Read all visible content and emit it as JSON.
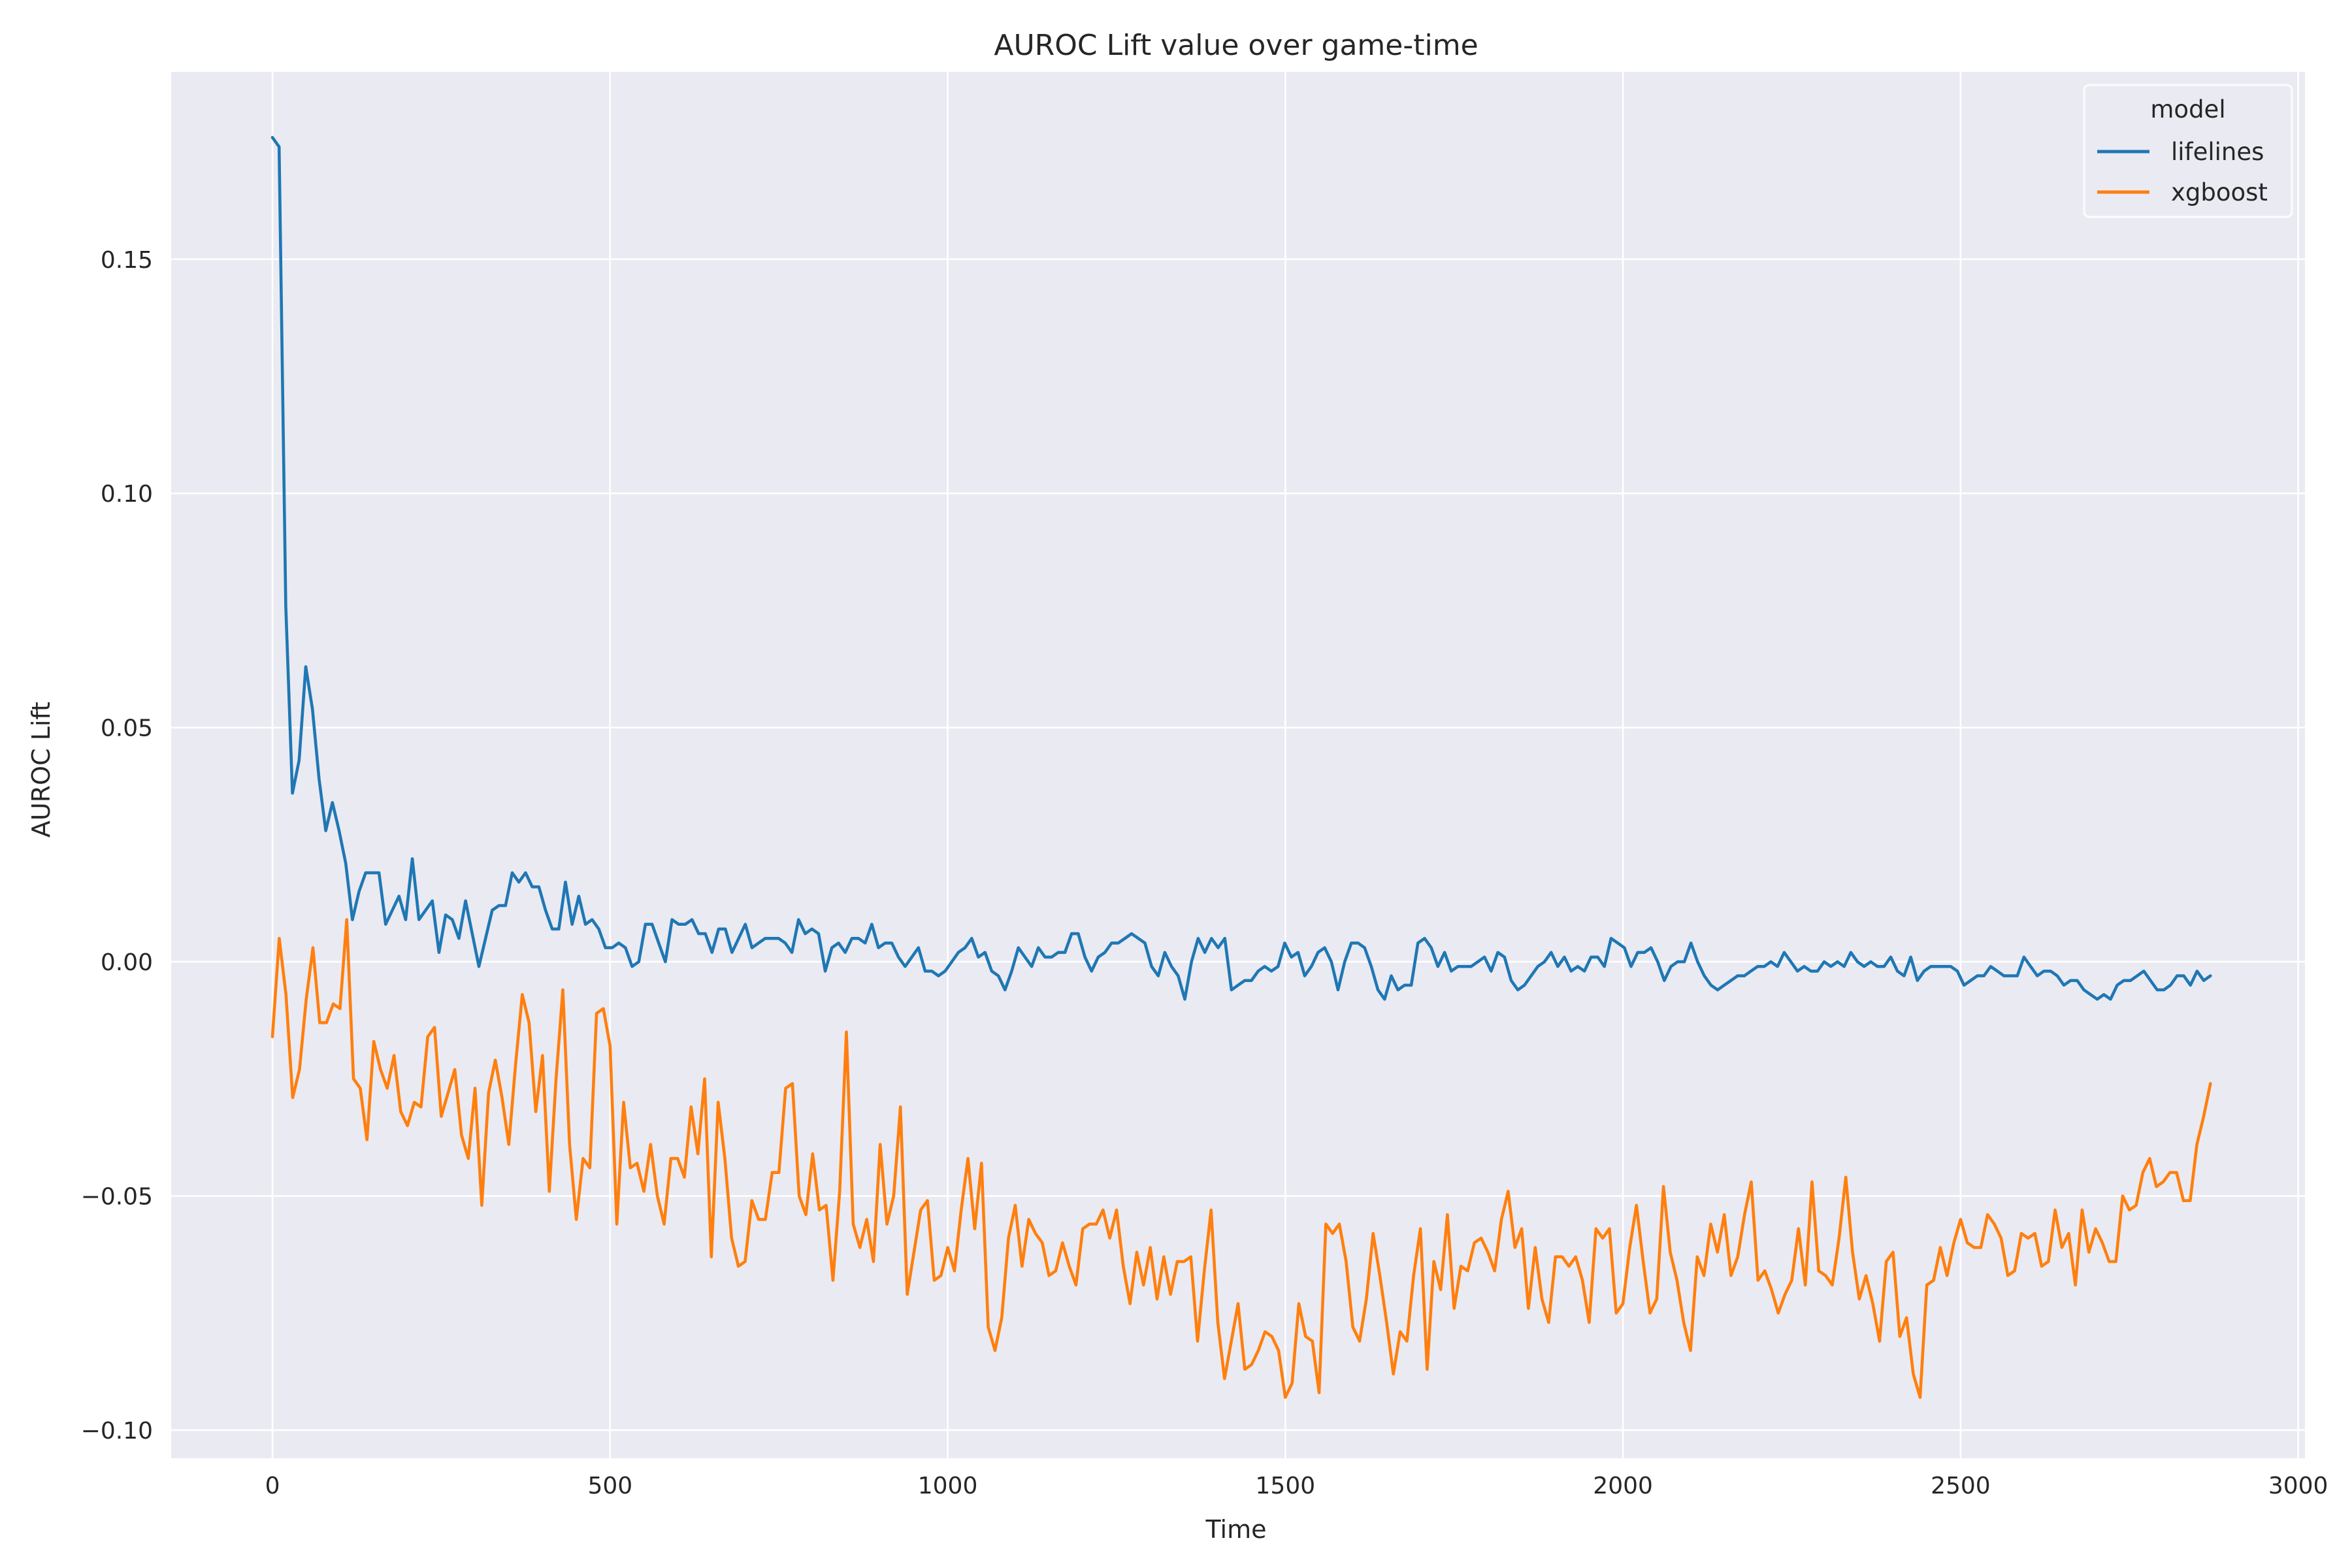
{
  "chart_data": {
    "type": "line",
    "title": "AUROC Lift value over game-time",
    "xlabel": "Time",
    "ylabel": "AUROC Lift",
    "xlim": [
      -150,
      3010
    ],
    "ylim": [
      -0.106,
      0.19
    ],
    "xticks": [
      0,
      500,
      1000,
      1500,
      2000,
      2500,
      3000
    ],
    "yticks": [
      -0.1,
      -0.05,
      0.0,
      0.05,
      0.1,
      0.15
    ],
    "xtick_labels": [
      "0",
      "500",
      "1000",
      "1500",
      "2000",
      "2500",
      "3000"
    ],
    "ytick_labels": [
      "−0.10",
      "−0.05",
      "0.00",
      "0.05",
      "0.10",
      "0.15"
    ],
    "grid": true,
    "legend_title": "model",
    "legend_position": "top-right",
    "x_start": 0,
    "x_step": 10,
    "series": [
      {
        "name": "lifelines",
        "color": "#1f77b4",
        "values": [
          0.176,
          0.174,
          0.076,
          0.036,
          0.043,
          0.063,
          0.054,
          0.039,
          0.028,
          0.034,
          0.028,
          0.021,
          0.009,
          0.015,
          0.019,
          0.019,
          0.019,
          0.008,
          0.011,
          0.014,
          0.009,
          0.022,
          0.009,
          0.011,
          0.013,
          0.002,
          0.01,
          0.009,
          0.005,
          0.013,
          0.006,
          -0.001,
          0.005,
          0.011,
          0.012,
          0.012,
          0.019,
          0.017,
          0.019,
          0.016,
          0.016,
          0.011,
          0.007,
          0.007,
          0.017,
          0.008,
          0.014,
          0.008,
          0.009,
          0.007,
          0.003,
          0.003,
          0.004,
          0.003,
          -0.001,
          0.0,
          0.008,
          0.008,
          0.004,
          0.0,
          0.009,
          0.008,
          0.008,
          0.009,
          0.006,
          0.006,
          0.002,
          0.007,
          0.007,
          0.002,
          0.005,
          0.008,
          0.003,
          0.004,
          0.005,
          0.005,
          0.005,
          0.004,
          0.002,
          0.009,
          0.006,
          0.007,
          0.006,
          -0.002,
          0.003,
          0.004,
          0.002,
          0.005,
          0.005,
          0.004,
          0.008,
          0.003,
          0.004,
          0.004,
          0.001,
          -0.001,
          0.001,
          0.003,
          -0.002,
          -0.002,
          -0.003,
          -0.002,
          0.0,
          0.002,
          0.003,
          0.005,
          0.001,
          0.002,
          -0.002,
          -0.003,
          -0.006,
          -0.002,
          0.003,
          0.001,
          -0.001,
          0.003,
          0.001,
          0.001,
          0.002,
          0.002,
          0.006,
          0.006,
          0.001,
          -0.002,
          0.001,
          0.002,
          0.004,
          0.004,
          0.005,
          0.006,
          0.005,
          0.004,
          -0.001,
          -0.003,
          0.002,
          -0.001,
          -0.003,
          -0.008,
          0.0,
          0.005,
          0.002,
          0.005,
          0.003,
          0.005,
          -0.006,
          -0.005,
          -0.004,
          -0.004,
          -0.002,
          -0.001,
          -0.002,
          -0.001,
          0.004,
          0.001,
          0.002,
          -0.003,
          -0.001,
          0.002,
          0.003,
          0.0,
          -0.006,
          0.0,
          0.004,
          0.004,
          0.003,
          -0.001,
          -0.006,
          -0.008,
          -0.003,
          -0.006,
          -0.005,
          -0.005,
          0.004,
          0.005,
          0.003,
          -0.001,
          0.002,
          -0.002,
          -0.001,
          -0.001,
          -0.001,
          0.0,
          0.001,
          -0.002,
          0.002,
          0.001,
          -0.004,
          -0.006,
          -0.005,
          -0.003,
          -0.001,
          0.0,
          0.002,
          -0.001,
          0.001,
          -0.002,
          -0.001,
          -0.002,
          0.001,
          0.001,
          -0.001,
          0.005,
          0.004,
          0.003,
          -0.001,
          0.002,
          0.002,
          0.003,
          0.0,
          -0.004,
          -0.001,
          0.0,
          0.0,
          0.004,
          0.0,
          -0.003,
          -0.005,
          -0.006,
          -0.005,
          -0.004,
          -0.003,
          -0.003,
          -0.002,
          -0.001,
          -0.001,
          0.0,
          -0.001,
          0.002,
          0.0,
          -0.002,
          -0.001,
          -0.002,
          -0.002,
          0.0,
          -0.001,
          0.0,
          -0.001,
          0.002,
          0.0,
          -0.001,
          0.0,
          -0.001,
          -0.001,
          0.001,
          -0.002,
          -0.003,
          0.001,
          -0.004,
          -0.002,
          -0.001,
          -0.001,
          -0.001,
          -0.001,
          -0.002,
          -0.005,
          -0.004,
          -0.003,
          -0.003,
          -0.001,
          -0.002,
          -0.003,
          -0.003,
          -0.003,
          0.001,
          -0.001,
          -0.003,
          -0.002,
          -0.002,
          -0.003,
          -0.005,
          -0.004,
          -0.004,
          -0.006,
          -0.007,
          -0.008,
          -0.007,
          -0.008,
          -0.005,
          -0.004,
          -0.004,
          -0.003,
          -0.002,
          -0.004,
          -0.006,
          -0.006,
          -0.005,
          -0.003,
          -0.003,
          -0.005,
          -0.002,
          -0.004,
          -0.003
        ],
        "x_end": 2870
      },
      {
        "name": "xgboost",
        "color": "#ff7f0e",
        "values": [
          -0.016,
          0.005,
          -0.007,
          -0.029,
          -0.023,
          -0.008,
          0.003,
          -0.013,
          -0.013,
          -0.009,
          -0.01,
          0.009,
          -0.025,
          -0.027,
          -0.038,
          -0.017,
          -0.023,
          -0.027,
          -0.02,
          -0.032,
          -0.035,
          -0.03,
          -0.031,
          -0.016,
          -0.014,
          -0.033,
          -0.028,
          -0.023,
          -0.037,
          -0.042,
          -0.027,
          -0.052,
          -0.028,
          -0.021,
          -0.029,
          -0.039,
          -0.022,
          -0.007,
          -0.013,
          -0.032,
          -0.02,
          -0.049,
          -0.025,
          -0.006,
          -0.039,
          -0.055,
          -0.042,
          -0.044,
          -0.011,
          -0.01,
          -0.018,
          -0.056,
          -0.03,
          -0.044,
          -0.043,
          -0.049,
          -0.039,
          -0.05,
          -0.056,
          -0.042,
          -0.042,
          -0.046,
          -0.031,
          -0.041,
          -0.025,
          -0.063,
          -0.03,
          -0.042,
          -0.059,
          -0.065,
          -0.064,
          -0.051,
          -0.055,
          -0.055,
          -0.045,
          -0.045,
          -0.027,
          -0.026,
          -0.05,
          -0.054,
          -0.041,
          -0.053,
          -0.052,
          -0.068,
          -0.049,
          -0.015,
          -0.056,
          -0.061,
          -0.055,
          -0.064,
          -0.039,
          -0.056,
          -0.05,
          -0.031,
          -0.071,
          -0.062,
          -0.053,
          -0.051,
          -0.068,
          -0.067,
          -0.061,
          -0.066,
          -0.053,
          -0.042,
          -0.057,
          -0.043,
          -0.078,
          -0.083,
          -0.076,
          -0.059,
          -0.052,
          -0.065,
          -0.055,
          -0.058,
          -0.06,
          -0.067,
          -0.066,
          -0.06,
          -0.065,
          -0.069,
          -0.057,
          -0.056,
          -0.056,
          -0.053,
          -0.059,
          -0.053,
          -0.065,
          -0.073,
          -0.062,
          -0.069,
          -0.061,
          -0.072,
          -0.063,
          -0.071,
          -0.064,
          -0.064,
          -0.063,
          -0.081,
          -0.066,
          -0.053,
          -0.077,
          -0.089,
          -0.081,
          -0.073,
          -0.087,
          -0.086,
          -0.083,
          -0.079,
          -0.08,
          -0.083,
          -0.093,
          -0.09,
          -0.073,
          -0.08,
          -0.081,
          -0.092,
          -0.056,
          -0.058,
          -0.056,
          -0.064,
          -0.078,
          -0.081,
          -0.072,
          -0.058,
          -0.067,
          -0.077,
          -0.088,
          -0.079,
          -0.081,
          -0.067,
          -0.057,
          -0.087,
          -0.064,
          -0.07,
          -0.054,
          -0.074,
          -0.065,
          -0.066,
          -0.06,
          -0.059,
          -0.062,
          -0.066,
          -0.055,
          -0.049,
          -0.061,
          -0.057,
          -0.074,
          -0.061,
          -0.072,
          -0.077,
          -0.063,
          -0.063,
          -0.065,
          -0.063,
          -0.068,
          -0.077,
          -0.057,
          -0.059,
          -0.057,
          -0.075,
          -0.073,
          -0.061,
          -0.052,
          -0.064,
          -0.075,
          -0.072,
          -0.048,
          -0.062,
          -0.068,
          -0.077,
          -0.083,
          -0.063,
          -0.067,
          -0.056,
          -0.062,
          -0.054,
          -0.067,
          -0.063,
          -0.054,
          -0.047,
          -0.068,
          -0.066,
          -0.07,
          -0.075,
          -0.071,
          -0.068,
          -0.057,
          -0.069,
          -0.047,
          -0.066,
          -0.067,
          -0.069,
          -0.059,
          -0.046,
          -0.062,
          -0.072,
          -0.067,
          -0.073,
          -0.081,
          -0.064,
          -0.062,
          -0.08,
          -0.076,
          -0.088,
          -0.093,
          -0.069,
          -0.068,
          -0.061,
          -0.067,
          -0.06,
          -0.055,
          -0.06,
          -0.061,
          -0.061,
          -0.054,
          -0.056,
          -0.059,
          -0.067,
          -0.066,
          -0.058,
          -0.059,
          -0.058,
          -0.065,
          -0.064,
          -0.053,
          -0.061,
          -0.058,
          -0.069,
          -0.053,
          -0.062,
          -0.057,
          -0.06,
          -0.064,
          -0.064,
          -0.05,
          -0.053,
          -0.052,
          -0.045,
          -0.042,
          -0.048,
          -0.047,
          -0.045,
          -0.045,
          -0.051,
          -0.051,
          -0.039,
          -0.033,
          -0.026
        ],
        "x_end": 2870
      }
    ]
  }
}
